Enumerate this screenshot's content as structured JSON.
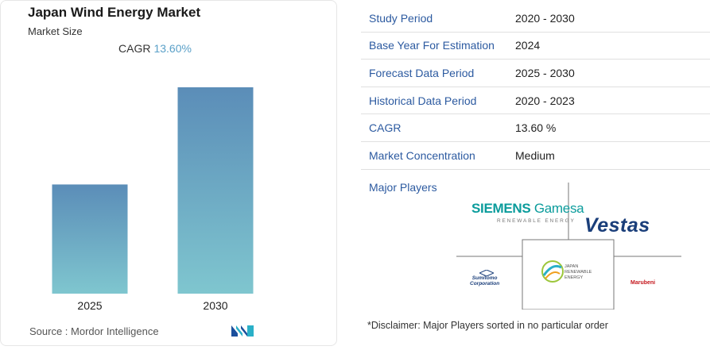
{
  "chart_data": {
    "type": "bar",
    "title": "Japan Wind Energy Market",
    "subtitle": "Market Size",
    "categories": [
      "2025",
      "2030"
    ],
    "values": [
      1.0,
      1.89
    ],
    "cagr_label": "CAGR",
    "cagr_value": "13.60%",
    "colors": {
      "bar_top": "#5b8db8",
      "bar_bottom": "#7fc6cf"
    }
  },
  "source": "Source :  Mordor Intelligence",
  "info": [
    {
      "label": "Study Period",
      "value": "2020 - 2030"
    },
    {
      "label": "Base Year For Estimation",
      "value": "2024"
    },
    {
      "label": "Forecast Data Period",
      "value": "2025 - 2030"
    },
    {
      "label": "Historical Data Period",
      "value": "2020 - 2023"
    },
    {
      "label": "CAGR",
      "value": "13.60 %"
    },
    {
      "label": "Market Concentration",
      "value": "Medium"
    }
  ],
  "players": {
    "label": "Major Players",
    "siemens": "SIEMENS",
    "gamesa": "Gamesa",
    "siemens_sub": "RENEWABLE ENERGY",
    "vestas": "Vestas",
    "sumitomo_line1": "Sumitomo",
    "sumitomo_line2": "Corporation",
    "marubeni": "Marubeni",
    "jre_line1": "JAPAN",
    "jre_line2": "RENEWABLE",
    "jre_line3": "ENERGY"
  },
  "disclaimer": "*Disclaimer: Major Players sorted in no particular order"
}
